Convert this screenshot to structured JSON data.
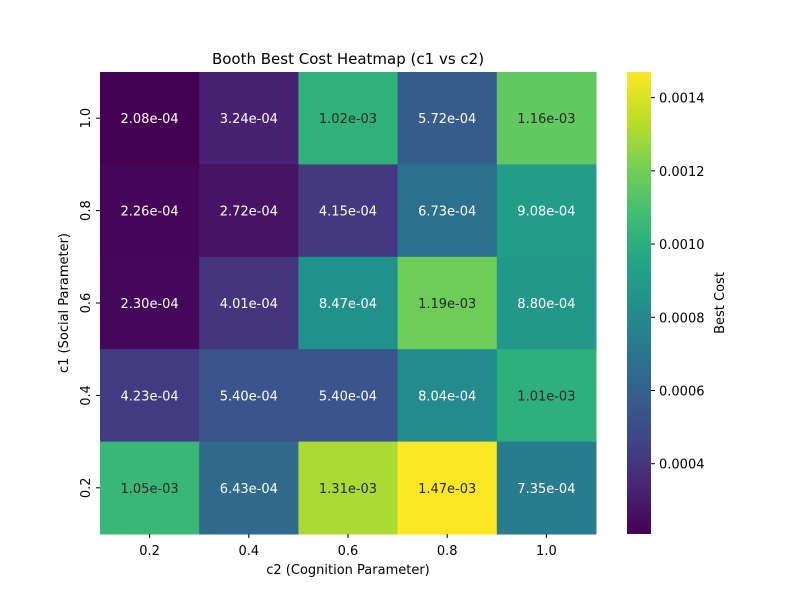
{
  "chart_data": {
    "type": "heatmap",
    "title": "Booth Best Cost Heatmap (c1 vs c2)",
    "xlabel": "c2 (Cognition Parameter)",
    "ylabel": "c1 (Social Parameter)",
    "x_categories": [
      "0.2",
      "0.4",
      "0.6",
      "0.8",
      "1.0"
    ],
    "y_categories": [
      "1.0",
      "0.8",
      "0.6",
      "0.4",
      "0.2"
    ],
    "values": [
      [
        0.000208,
        0.000324,
        0.00102,
        0.000572,
        0.00116
      ],
      [
        0.000226,
        0.000272,
        0.000415,
        0.000673,
        0.000908
      ],
      [
        0.00023,
        0.000401,
        0.000847,
        0.00119,
        0.00088
      ],
      [
        0.000423,
        0.00054,
        0.00054,
        0.000804,
        0.00101
      ],
      [
        0.00105,
        0.000643,
        0.00131,
        0.00147,
        0.000735
      ]
    ],
    "cell_labels": [
      [
        "2.08e-04",
        "3.24e-04",
        "1.02e-03",
        "5.72e-04",
        "1.16e-03"
      ],
      [
        "2.26e-04",
        "2.72e-04",
        "4.15e-04",
        "6.73e-04",
        "9.08e-04"
      ],
      [
        "2.30e-04",
        "4.01e-04",
        "8.47e-04",
        "1.19e-03",
        "8.80e-04"
      ],
      [
        "4.23e-04",
        "5.40e-04",
        "5.40e-04",
        "8.04e-04",
        "1.01e-03"
      ],
      [
        "1.05e-03",
        "6.43e-04",
        "1.31e-03",
        "1.47e-03",
        "7.35e-04"
      ]
    ],
    "colormap": "viridis",
    "colorbar": {
      "label": "Best Cost",
      "vmin": 0.000208,
      "vmax": 0.00147,
      "ticks": [
        "0.0004",
        "0.0006",
        "0.0008",
        "0.0010",
        "0.0012",
        "0.0014"
      ]
    }
  }
}
